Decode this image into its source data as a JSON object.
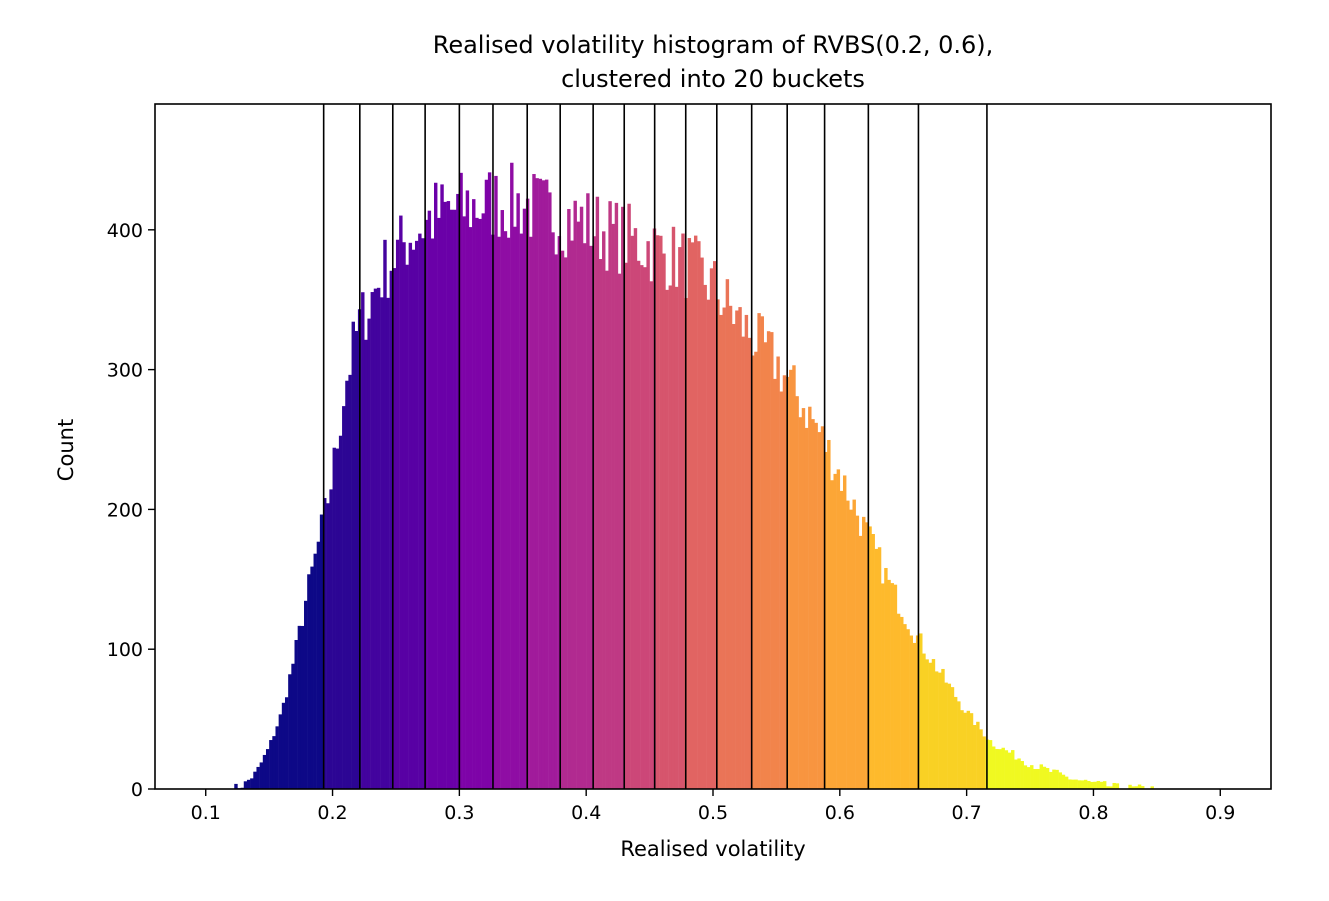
{
  "chart_data": {
    "type": "histogram",
    "title_lines": [
      "Realised volatility histogram of RVBS(0.2, 0.6),",
      "clustered into 20 buckets"
    ],
    "xlabel": "Realised volatility",
    "ylabel": "Count",
    "xlim": [
      0.06,
      0.94
    ],
    "ylim": [
      0,
      490
    ],
    "xticks": [
      0.1,
      0.2,
      0.3,
      0.4,
      0.5,
      0.6,
      0.7,
      0.8,
      0.9
    ],
    "xtick_labels": [
      "0.1",
      "0.2",
      "0.3",
      "0.4",
      "0.5",
      "0.6",
      "0.7",
      "0.8",
      "0.9"
    ],
    "yticks": [
      0,
      100,
      200,
      300,
      400
    ],
    "ytick_labels": [
      "0",
      "100",
      "200",
      "300",
      "400"
    ],
    "colormap": "plasma",
    "bin_width": 0.0025,
    "bucket_boundaries": [
      0.193,
      0.2215,
      0.2475,
      0.273,
      0.3,
      0.3265,
      0.3535,
      0.3795,
      0.4055,
      0.43,
      0.454,
      0.4785,
      0.503,
      0.5305,
      0.5585,
      0.588,
      0.6225,
      0.662,
      0.716
    ],
    "bucket_colors": [
      "#0d0887",
      "#2c0594",
      "#43039e",
      "#5801a4",
      "#6a00a8",
      "#7e03a8",
      "#8f0da4",
      "#a11b9b",
      "#b12a90",
      "#bf3984",
      "#cc4778",
      "#d6556d",
      "#e16462",
      "#ea7457",
      "#f2844b",
      "#f89540",
      "#fca636",
      "#feba2c",
      "#f9d124",
      "#f0f921"
    ],
    "density_profile": {
      "x": [
        0.1,
        0.12,
        0.13,
        0.14,
        0.15,
        0.16,
        0.17,
        0.18,
        0.19,
        0.2,
        0.21,
        0.22,
        0.24,
        0.26,
        0.28,
        0.3,
        0.33,
        0.35,
        0.37,
        0.4,
        0.42,
        0.45,
        0.48,
        0.5,
        0.52,
        0.55,
        0.58,
        0.6,
        0.62,
        0.64,
        0.66,
        0.68,
        0.7,
        0.72,
        0.75,
        0.78,
        0.8,
        0.82,
        0.85
      ],
      "count": [
        0,
        0,
        3,
        12,
        30,
        55,
        95,
        140,
        180,
        225,
        290,
        330,
        370,
        395,
        410,
        415,
        420,
        418,
        412,
        405,
        397,
        388,
        375,
        360,
        335,
        305,
        262,
        225,
        185,
        145,
        110,
        82,
        55,
        33,
        18,
        8,
        4,
        1,
        0
      ]
    }
  }
}
